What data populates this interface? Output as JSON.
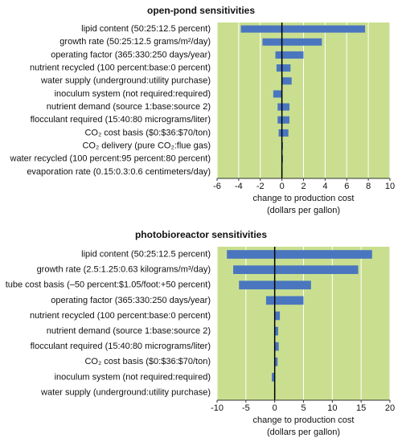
{
  "chart_data": [
    {
      "type": "tornado",
      "title": "open-pond sensitivities",
      "categories": [
        "lipid content (50:25:12.5 percent)",
        "growth rate (50:25:12.5 grams/m²/day)",
        "operating factor (365:330:250 days/year)",
        "nutrient recycled (100 percent:base:0 percent)",
        "water supply (underground:utility purchase)",
        "inoculum system (not required:required)",
        "nutrient demand (source 1:base:source 2)",
        "flocculant required (15:40:80 micrograms/liter)",
        "CO₂ cost basis ($0:$36:$70/ton)",
        "CO₂ delivery (pure CO₂:flue gas)",
        "water recycled (100 percent:95 percent:80 percent)",
        "evaporation rate (0.15:0.3:0.6 centimeters/day)"
      ],
      "ranges": [
        [
          -3.8,
          7.7
        ],
        [
          -1.8,
          3.7
        ],
        [
          -0.6,
          2.0
        ],
        [
          -0.5,
          0.8
        ],
        [
          0,
          0.9
        ],
        [
          -0.8,
          0
        ],
        [
          -0.4,
          0.7
        ],
        [
          -0.4,
          0.7
        ],
        [
          -0.3,
          0.6
        ],
        [
          0,
          0.1
        ],
        [
          0,
          0.1
        ],
        [
          -0.05,
          0.05
        ]
      ],
      "color": "#4a76c0",
      "background": "#c9df8f",
      "grid": true,
      "xlim": [
        -6,
        10
      ],
      "xticks": [
        -6,
        -4,
        -2,
        0,
        2,
        4,
        6,
        8,
        10
      ],
      "xlabel": [
        "change to production cost",
        "(dollars per gallon)"
      ]
    },
    {
      "type": "tornado",
      "title": "photobioreactor sensitivities",
      "categories": [
        "lipid content (50:25:12.5 percent)",
        "growth rate (2.5:1.25:0.63 kilograms/m³/day)",
        "tube cost basis (–50 percent:$1.05/foot:+50 percent)",
        "operating factor (365:330:250 days/year)",
        "nutrient recycled (100 percent:base:0 percent)",
        "nutrient demand (source 1:base:source 2)",
        "flocculant required (15:40:80 micrograms/liter)",
        "CO₂ cost basis ($0:$36:$70/ton)",
        "inoculum system (not required:required)",
        "water supply (underground:utility purchase)"
      ],
      "ranges": [
        [
          -8.3,
          16.9
        ],
        [
          -7.2,
          14.5
        ],
        [
          -6.2,
          6.3
        ],
        [
          -1.5,
          5.0
        ],
        [
          0,
          0.9
        ],
        [
          0,
          0.6
        ],
        [
          0,
          0.7
        ],
        [
          0,
          0.5
        ],
        [
          -0.5,
          0
        ],
        [
          0,
          0.05
        ]
      ],
      "color": "#4a76c0",
      "background": "#c9df8f",
      "grid": true,
      "xlim": [
        -10,
        20
      ],
      "xticks": [
        -10,
        -5,
        0,
        5,
        10,
        15,
        20
      ],
      "xlabel": [
        "change to production cost",
        "(dollars per gallon)"
      ]
    }
  ]
}
